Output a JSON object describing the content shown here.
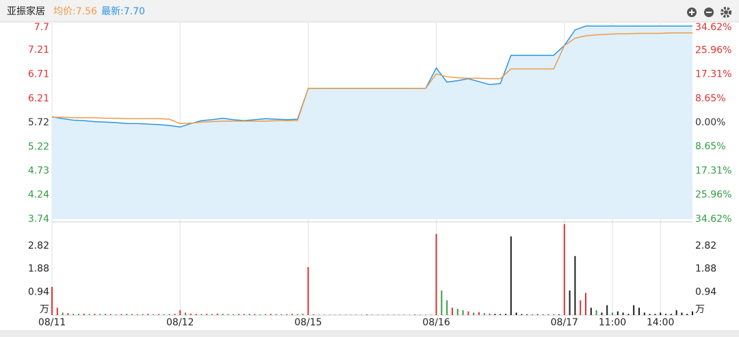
{
  "header": {
    "title": "亚振家居",
    "avg_label": "均价:7.56",
    "latest_label": "最新:7.70"
  },
  "chart_data": {
    "type": "intraday",
    "xlim": [
      0,
      1200
    ],
    "xticks": [
      {
        "value": 0,
        "label": "08/11"
      },
      {
        "value": 240,
        "label": "08/12"
      },
      {
        "value": 480,
        "label": "08/15"
      },
      {
        "value": 720,
        "label": "08/16"
      },
      {
        "value": 960,
        "label": "08/17"
      },
      {
        "value": 1050,
        "label": "11:00"
      },
      {
        "value": 1140,
        "label": "14:00"
      }
    ],
    "ylim": [
      3.74,
      7.7
    ],
    "yticks": [
      7.7,
      7.21,
      6.71,
      6.21,
      5.72,
      5.22,
      4.73,
      4.24,
      3.74
    ],
    "y2lim": [
      -34.62,
      34.62
    ],
    "y2ticks": [
      {
        "value": 34.62,
        "label": "34.62%"
      },
      {
        "value": 25.96,
        "label": "25.96%"
      },
      {
        "value": 17.31,
        "label": "17.31%"
      },
      {
        "value": 8.65,
        "label": "8.65%"
      },
      {
        "value": 0,
        "label": "0.00%"
      },
      {
        "value": -8.65,
        "label": "8.65%"
      },
      {
        "value": -17.31,
        "label": "17.31%"
      },
      {
        "value": -25.96,
        "label": "25.96%"
      },
      {
        "value": -34.62,
        "label": "34.62%"
      }
    ],
    "up_color": "#e0302f",
    "down_color": "#2f9e3f",
    "flat_color": "#333333",
    "x": [
      0,
      20,
      40,
      60,
      80,
      100,
      120,
      140,
      160,
      180,
      200,
      220,
      240,
      260,
      280,
      300,
      320,
      340,
      360,
      380,
      400,
      420,
      440,
      460,
      480,
      500,
      520,
      540,
      560,
      580,
      600,
      620,
      640,
      660,
      680,
      700,
      720,
      740,
      760,
      780,
      800,
      820,
      840,
      860,
      880,
      900,
      920,
      940,
      960,
      980,
      1000,
      1020,
      1040,
      1060,
      1080,
      1100,
      1120,
      1140,
      1160,
      1180,
      1200
    ],
    "series": [
      {
        "color": "#2b95e3",
        "area": "#dff0fb",
        "values": [
          5.84,
          5.8,
          5.77,
          5.76,
          5.74,
          5.73,
          5.72,
          5.7,
          5.7,
          5.69,
          5.68,
          5.66,
          5.63,
          5.7,
          5.76,
          5.78,
          5.81,
          5.78,
          5.76,
          5.78,
          5.8,
          5.79,
          5.78,
          5.79,
          6.42,
          6.42,
          6.42,
          6.42,
          6.42,
          6.42,
          6.42,
          6.42,
          6.42,
          6.42,
          6.42,
          6.42,
          6.84,
          6.55,
          6.58,
          6.62,
          6.56,
          6.5,
          6.52,
          7.1,
          7.1,
          7.1,
          7.1,
          7.1,
          7.3,
          7.62,
          7.7,
          7.7,
          7.7,
          7.7,
          7.7,
          7.7,
          7.7,
          7.7,
          7.7,
          7.7,
          7.7
        ]
      },
      {
        "color": "#ef9a45",
        "values": [
          5.83,
          5.83,
          5.82,
          5.82,
          5.82,
          5.81,
          5.81,
          5.8,
          5.8,
          5.8,
          5.8,
          5.79,
          5.7,
          5.71,
          5.73,
          5.74,
          5.75,
          5.75,
          5.75,
          5.75,
          5.75,
          5.76,
          5.76,
          5.76,
          6.42,
          6.42,
          6.42,
          6.42,
          6.42,
          6.42,
          6.42,
          6.42,
          6.42,
          6.42,
          6.42,
          6.42,
          6.72,
          6.66,
          6.64,
          6.63,
          6.63,
          6.62,
          6.62,
          6.82,
          6.82,
          6.82,
          6.82,
          6.82,
          7.3,
          7.45,
          7.5,
          7.52,
          7.53,
          7.54,
          7.54,
          7.55,
          7.55,
          7.55,
          7.56,
          7.56,
          7.56
        ]
      }
    ],
    "volume": {
      "unit": "万",
      "ylim": [
        0,
        3.76
      ],
      "yticks": [
        2.82,
        1.88,
        0.94
      ],
      "x": [
        0,
        10,
        20,
        30,
        40,
        50,
        60,
        70,
        80,
        90,
        100,
        110,
        120,
        130,
        140,
        150,
        160,
        170,
        180,
        190,
        200,
        210,
        220,
        230,
        240,
        250,
        260,
        270,
        280,
        290,
        300,
        310,
        320,
        330,
        340,
        350,
        360,
        370,
        380,
        390,
        400,
        410,
        420,
        430,
        440,
        450,
        460,
        470,
        480,
        490,
        500,
        510,
        520,
        530,
        540,
        550,
        560,
        570,
        580,
        590,
        600,
        610,
        620,
        630,
        640,
        650,
        660,
        670,
        680,
        690,
        700,
        710,
        720,
        730,
        740,
        750,
        760,
        770,
        780,
        790,
        800,
        810,
        820,
        830,
        840,
        850,
        860,
        870,
        880,
        890,
        900,
        910,
        920,
        930,
        940,
        950,
        960,
        970,
        980,
        990,
        1000,
        1010,
        1020,
        1030,
        1040,
        1050,
        1060,
        1070,
        1080,
        1090,
        1100,
        1110,
        1120,
        1130,
        1140,
        1150,
        1160,
        1170,
        1180,
        1190,
        1200
      ],
      "values": [
        1.15,
        0.3,
        0.1,
        0.08,
        0.05,
        0.05,
        0.06,
        0.04,
        0.05,
        0.04,
        0.05,
        0.04,
        0.03,
        0.04,
        0.05,
        0.04,
        0.03,
        0.04,
        0.05,
        0.03,
        0.04,
        0.03,
        0.04,
        0.05,
        0.2,
        0.1,
        0.06,
        0.05,
        0.04,
        0.05,
        0.04,
        0.06,
        0.05,
        0.04,
        0.03,
        0.05,
        0.04,
        0.05,
        0.04,
        0.03,
        0.04,
        0.05,
        0.04,
        0.03,
        0.04,
        0.05,
        0.04,
        0.05,
        1.95,
        0.02,
        0.01,
        0.01,
        0.01,
        0.01,
        0.01,
        0.01,
        0.01,
        0.01,
        0.01,
        0.02,
        0.01,
        0.01,
        0.01,
        0.01,
        0.01,
        0.01,
        0.01,
        0.01,
        0.02,
        0.01,
        0.01,
        0.01,
        3.3,
        1.0,
        0.6,
        0.3,
        0.25,
        0.2,
        0.15,
        0.1,
        0.12,
        0.08,
        0.06,
        0.05,
        0.04,
        0.05,
        3.2,
        0.1,
        0.04,
        0.03,
        0.02,
        0.03,
        0.02,
        0.02,
        0.02,
        0.03,
        3.7,
        1.0,
        2.4,
        0.6,
        0.9,
        0.3,
        0.2,
        0.1,
        0.4,
        0.1,
        0.15,
        0.1,
        0.05,
        0.4,
        0.3,
        0.1,
        0.05,
        0.05,
        0.1,
        0.05,
        0.05,
        0.2,
        0.1,
        0.05,
        0.15
      ],
      "colors": [
        "#e0302f",
        "#e0302f",
        "#2f9e3f",
        "#e0302f",
        "#2f9e3f",
        "#2f9e3f",
        "#e0302f",
        "#2f9e3f",
        "#e0302f",
        "#2f9e3f",
        "#2f9e3f",
        "#e0302f",
        "#2f9e3f",
        "#e0302f",
        "#2f9e3f",
        "#2f9e3f",
        "#e0302f",
        "#2f9e3f",
        "#e0302f",
        "#2f9e3f",
        "#e0302f",
        "#2f9e3f",
        "#2f9e3f",
        "#e0302f",
        "#e0302f",
        "#2f9e3f",
        "#e0302f",
        "#e0302f",
        "#2f9e3f",
        "#e0302f",
        "#2f9e3f",
        "#e0302f",
        "#2f9e3f",
        "#2f9e3f",
        "#e0302f",
        "#2f9e3f",
        "#e0302f",
        "#2f9e3f",
        "#e0302f",
        "#2f9e3f",
        "#2f9e3f",
        "#e0302f",
        "#2f9e3f",
        "#e0302f",
        "#2f9e3f",
        "#e0302f",
        "#2f9e3f",
        "#2f9e3f",
        "#e0302f",
        "#1a1a1a",
        "#1a1a1a",
        "#1a1a1a",
        "#1a1a1a",
        "#1a1a1a",
        "#1a1a1a",
        "#1a1a1a",
        "#1a1a1a",
        "#1a1a1a",
        "#1a1a1a",
        "#1a1a1a",
        "#1a1a1a",
        "#1a1a1a",
        "#1a1a1a",
        "#1a1a1a",
        "#1a1a1a",
        "#1a1a1a",
        "#1a1a1a",
        "#1a1a1a",
        "#1a1a1a",
        "#1a1a1a",
        "#1a1a1a",
        "#1a1a1a",
        "#e0302f",
        "#2f9e3f",
        "#2f9e3f",
        "#e0302f",
        "#2f9e3f",
        "#2f9e3f",
        "#e0302f",
        "#2f9e3f",
        "#e0302f",
        "#2f9e3f",
        "#e0302f",
        "#1a1a1a",
        "#1a1a1a",
        "#1a1a1a",
        "#1a1a1a",
        "#1a1a1a",
        "#1a1a1a",
        "#1a1a1a",
        "#1a1a1a",
        "#1a1a1a",
        "#1a1a1a",
        "#1a1a1a",
        "#1a1a1a",
        "#1a1a1a",
        "#e0302f",
        "#1a1a1a",
        "#1a1a1a",
        "#e0302f",
        "#e0302f",
        "#1a1a1a",
        "#2f9e3f",
        "#1a1a1a",
        "#1a1a1a",
        "#2f9e3f",
        "#1a1a1a",
        "#1a1a1a",
        "#1a1a1a",
        "#1a1a1a",
        "#1a1a1a",
        "#1a1a1a",
        "#1a1a1a",
        "#1a1a1a",
        "#1a1a1a",
        "#1a1a1a",
        "#1a1a1a",
        "#1a1a1a",
        "#1a1a1a",
        "#1a1a1a",
        "#1a1a1a"
      ]
    }
  }
}
